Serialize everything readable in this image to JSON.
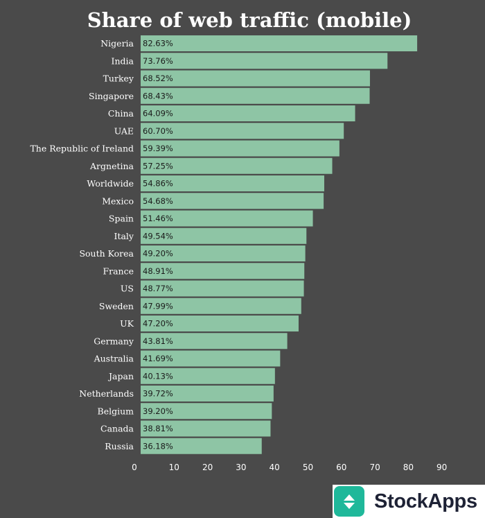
{
  "chart_data": {
    "type": "bar",
    "orientation": "horizontal",
    "title": "Share of web traffic (mobile)",
    "xlabel": "",
    "ylabel": "",
    "xlim": [
      0,
      90
    ],
    "x_ticks": [
      0,
      10,
      20,
      30,
      40,
      50,
      60,
      70,
      80,
      90
    ],
    "grid": false,
    "bar_color": "#8ec5a5",
    "background_color": "#4a4a4a",
    "categories": [
      "Nigeria",
      "India",
      "Turkey",
      "Singapore",
      "China",
      "UAE",
      "The Republic of Ireland",
      "Argnetina",
      "Worldwide",
      "Mexico",
      "Spain",
      "Italy",
      "South Korea",
      "France",
      "US",
      "Sweden",
      "UK",
      "Germany",
      "Australia",
      "Japan",
      "Netherlands",
      "Belgium",
      "Canada",
      "Russia"
    ],
    "values": [
      82.63,
      73.76,
      68.52,
      68.43,
      64.09,
      60.7,
      59.39,
      57.25,
      54.86,
      54.68,
      51.46,
      49.54,
      49.2,
      48.91,
      48.77,
      47.99,
      47.2,
      43.81,
      41.69,
      40.13,
      39.72,
      39.2,
      38.81,
      36.18
    ],
    "data_labels": [
      "82.63%",
      "73.76%",
      "68.52%",
      "68.43%",
      "64.09%",
      "60.70%",
      "59.39%",
      "57.25%",
      "54.86%",
      "54.68%",
      "51.46%",
      "49.54%",
      "49.20%",
      "48.91%",
      "48.77%",
      "47.99%",
      "47.20%",
      "43.81%",
      "41.69%",
      "40.13%",
      "39.72%",
      "39.20%",
      "38.81%",
      "36.18%"
    ]
  },
  "branding": {
    "name": "StockApps",
    "logo_icon": "up-down-arrows-icon",
    "logo_color": "#1fb89a"
  }
}
